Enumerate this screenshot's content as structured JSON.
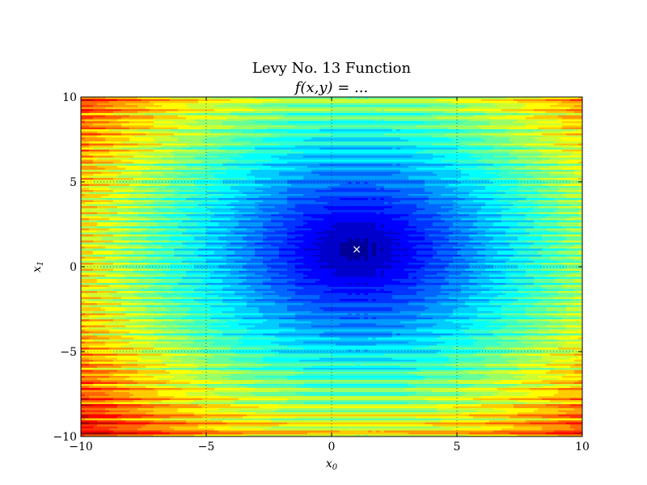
{
  "chart_data": {
    "type": "heatmap",
    "title": "Levy No. 13 Function",
    "subtitle": "f(x,y) = ...",
    "xlabel": "x",
    "xlabel_sub": "0",
    "ylabel": "x",
    "ylabel_sub": "1",
    "xlim": [
      -10,
      10
    ],
    "ylim": [
      -10,
      10
    ],
    "x_ticks": [
      -10,
      -5,
      0,
      5,
      10
    ],
    "y_ticks": [
      -10,
      -5,
      0,
      5,
      10
    ],
    "x_tick_labels": [
      "−10",
      "−5",
      "0",
      "5",
      "10"
    ],
    "y_tick_labels": [
      "−10",
      "−5",
      "0",
      "5",
      "10"
    ],
    "grid": true,
    "colormap": "jet",
    "minimum_marker": {
      "x": 1,
      "y": 1,
      "symbol": "×",
      "color": "#ffffff"
    }
  }
}
